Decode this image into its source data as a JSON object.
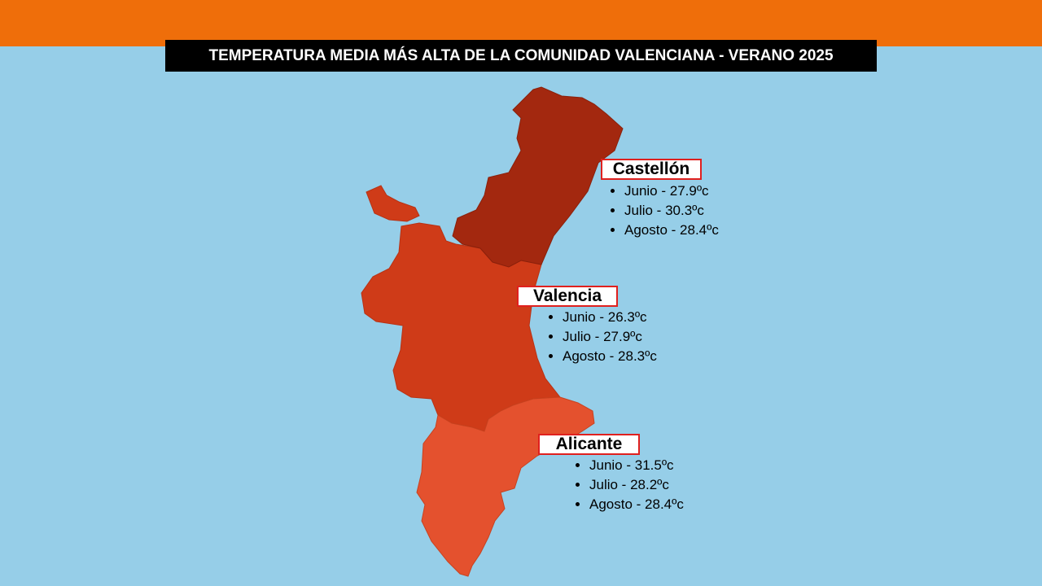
{
  "title": "TEMPERATURA MEDIA MÁS ALTA DE LA COMUNIDAD VALENCIANA - VERANO 2025",
  "regions": [
    {
      "name": "Castellón",
      "items": [
        "Junio - 27.9ºc",
        "Julio - 30.3ºc",
        "Agosto - 28.4ºc"
      ]
    },
    {
      "name": "Valencia",
      "items": [
        "Junio - 26.3ºc",
        "Julio - 27.9ºc",
        "Agosto - 28.3ºc"
      ]
    },
    {
      "name": "Alicante",
      "items": [
        "Junio - 31.5ºc",
        "Julio - 28.2ºc",
        "Agosto - 28.4ºc"
      ]
    }
  ]
}
